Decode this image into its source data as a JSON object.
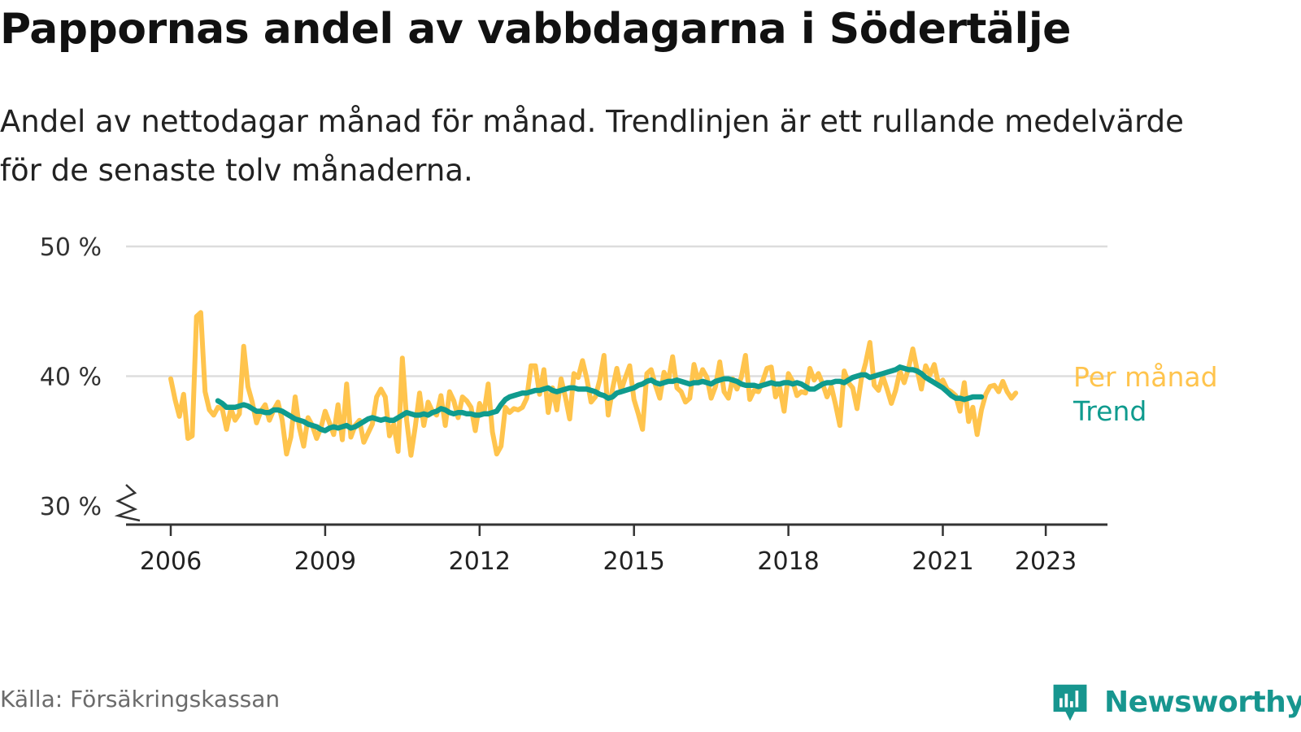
{
  "title": "Pappornas andel av vabbdagarna i Södertälje",
  "subtitle": "Andel av nettodagar månad för månad. Trendlinjen är ett rullande medelvärde för de senaste tolv månaderna.",
  "source": "Källa: Försäkringskassan",
  "brand": "Newsworthy",
  "colors": {
    "monthly": "#ffc44d",
    "trend": "#0f9b8e",
    "grid": "#dddddd",
    "axis": "#333333",
    "brand": "#17968f"
  },
  "chart_data": {
    "type": "line",
    "x_start": "2006-01",
    "x_step": "month",
    "ylim": [
      30,
      50
    ],
    "yticks": [
      50,
      40,
      30
    ],
    "ytick_labels": [
      "50 %",
      "40 %",
      "30 %"
    ],
    "y_axis_break": true,
    "xticks": [
      2006,
      2009,
      2012,
      2015,
      2018,
      2021,
      2023
    ],
    "xtick_labels": [
      "2006",
      "2009",
      "2012",
      "2015",
      "2018",
      "2021",
      "2023"
    ],
    "grid": true,
    "legend": "inline-right",
    "series": [
      {
        "name": "Per månad",
        "values": [
          39.8,
          38.2,
          36.9,
          38.6,
          35.2,
          35.4,
          44.6,
          44.9,
          38.8,
          37.4,
          37.0,
          37.6,
          37.5,
          35.9,
          37.5,
          36.6,
          37.1,
          42.3,
          39.2,
          38.0,
          36.4,
          37.3,
          37.8,
          36.6,
          37.4,
          38.0,
          36.6,
          34.0,
          35.3,
          38.4,
          36.0,
          34.6,
          36.8,
          36.2,
          35.2,
          36.0,
          37.3,
          36.4,
          35.5,
          37.8,
          35.1,
          39.4,
          35.3,
          36.2,
          36.6,
          34.9,
          35.6,
          36.3,
          38.4,
          39.0,
          38.4,
          35.4,
          36.3,
          34.2,
          41.4,
          36.6,
          33.9,
          36.1,
          38.7,
          36.2,
          38.0,
          37.3,
          37.0,
          38.5,
          36.2,
          38.8,
          38.1,
          36.8,
          38.4,
          38.1,
          37.6,
          35.8,
          37.9,
          37.1,
          39.4,
          35.7,
          34.0,
          34.6,
          37.6,
          37.2,
          37.5,
          37.4,
          37.6,
          38.3,
          40.8,
          40.8,
          38.6,
          40.5,
          37.2,
          39.1,
          37.4,
          39.8,
          38.4,
          36.7,
          40.2,
          39.9,
          41.2,
          39.8,
          38.0,
          38.4,
          39.7,
          41.6,
          37.0,
          39.0,
          40.6,
          38.9,
          39.9,
          40.8,
          38.2,
          37.1,
          35.9,
          40.2,
          40.5,
          39.3,
          38.3,
          40.3,
          39.6,
          41.5,
          39.1,
          38.8,
          38.0,
          38.3,
          40.9,
          39.6,
          40.5,
          39.9,
          38.3,
          39.2,
          41.1,
          38.8,
          38.3,
          39.8,
          39.0,
          39.9,
          41.6,
          38.2,
          38.9,
          38.8,
          39.6,
          40.6,
          40.7,
          38.4,
          39.1,
          37.3,
          40.2,
          39.6,
          38.5,
          38.8,
          38.7,
          40.6,
          39.7,
          40.2,
          39.4,
          38.4,
          39.2,
          37.8,
          36.2,
          40.4,
          39.5,
          39.1,
          37.5,
          39.8,
          41.0,
          42.6,
          39.3,
          38.9,
          40.0,
          39.0,
          37.9,
          38.9,
          40.4,
          39.5,
          40.6,
          42.1,
          40.5,
          39.0,
          40.8,
          40.1,
          40.9,
          39.4,
          39.7,
          39.0,
          38.8,
          38.5,
          37.3,
          39.5,
          36.5,
          37.6,
          35.5,
          37.4,
          38.6,
          39.2,
          39.3,
          38.8,
          39.6,
          38.8,
          38.3,
          38.7
        ]
      },
      {
        "name": "Trend",
        "values": [
          38.1,
          37.9,
          37.6,
          37.6,
          37.6,
          37.7,
          37.8,
          37.7,
          37.5,
          37.3,
          37.3,
          37.2,
          37.2,
          37.4,
          37.4,
          37.3,
          37.1,
          36.9,
          36.7,
          36.6,
          36.5,
          36.3,
          36.2,
          36.1,
          35.9,
          35.8,
          36.0,
          36.1,
          36.0,
          36.1,
          36.2,
          36.0,
          36.1,
          36.3,
          36.5,
          36.7,
          36.8,
          36.7,
          36.6,
          36.7,
          36.6,
          36.6,
          36.8,
          37.0,
          37.2,
          37.1,
          37.0,
          37.0,
          37.1,
          37.0,
          37.2,
          37.3,
          37.5,
          37.4,
          37.2,
          37.1,
          37.2,
          37.2,
          37.1,
          37.1,
          37.0,
          37.0,
          37.1,
          37.1,
          37.2,
          37.3,
          37.8,
          38.2,
          38.4,
          38.5,
          38.6,
          38.7,
          38.7,
          38.8,
          38.9,
          38.9,
          39.0,
          39.1,
          38.9,
          38.8,
          38.9,
          39.0,
          39.1,
          39.1,
          39.0,
          39.0,
          39.0,
          38.9,
          38.8,
          38.6,
          38.5,
          38.3,
          38.4,
          38.7,
          38.8,
          38.9,
          39.0,
          39.1,
          39.3,
          39.4,
          39.6,
          39.7,
          39.5,
          39.4,
          39.5,
          39.6,
          39.6,
          39.7,
          39.6,
          39.5,
          39.4,
          39.5,
          39.5,
          39.6,
          39.5,
          39.4,
          39.6,
          39.7,
          39.8,
          39.8,
          39.7,
          39.6,
          39.4,
          39.3,
          39.3,
          39.3,
          39.2,
          39.3,
          39.4,
          39.5,
          39.4,
          39.4,
          39.5,
          39.5,
          39.4,
          39.5,
          39.4,
          39.2,
          39.0,
          39.0,
          39.2,
          39.4,
          39.5,
          39.5,
          39.6,
          39.6,
          39.5,
          39.7,
          39.9,
          40.0,
          40.1,
          40.1,
          39.9,
          40.0,
          40.1,
          40.2,
          40.3,
          40.4,
          40.5,
          40.7,
          40.6,
          40.5,
          40.5,
          40.4,
          40.2,
          39.9,
          39.7,
          39.5,
          39.3,
          39.1,
          38.8,
          38.5,
          38.3,
          38.3,
          38.2,
          38.3,
          38.4,
          38.4,
          38.4
        ]
      }
    ]
  }
}
